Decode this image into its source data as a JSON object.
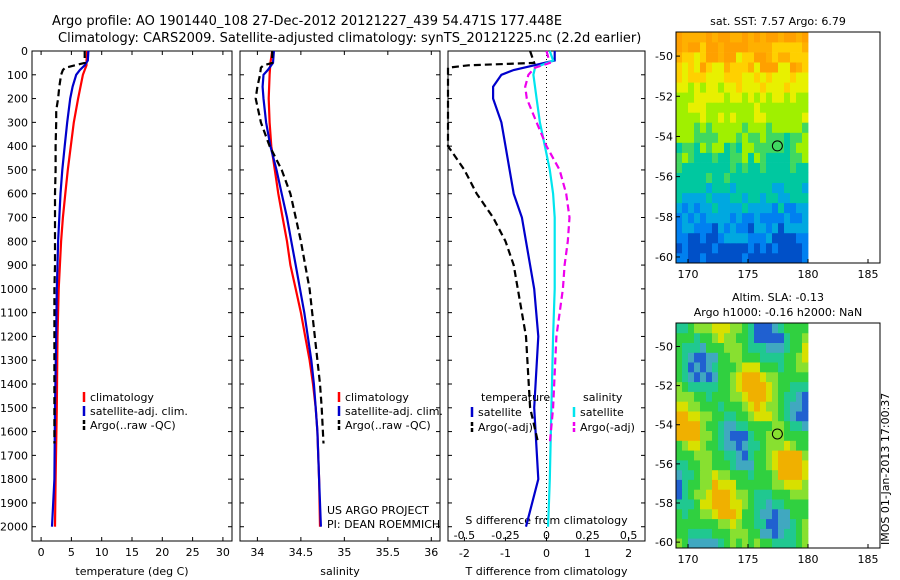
{
  "header": {
    "title_line1": "Argo profile: AO 1901440_108 27-Dec-2012 20121227_439 54.471S 177.448E",
    "title_line2": "Climatology: CARS2009. Satellite-adjusted climatology: synTS_20121225.nc (2.2d earlier)"
  },
  "colors": {
    "climatology": "#ff0000",
    "satellite": "#0000cc",
    "argo": "#000000",
    "satellite_salinity": "#00e5ee",
    "argo_salinity": "#ee00ee"
  },
  "depth_ticks": [
    "0",
    "100",
    "200",
    "300",
    "400",
    "500",
    "600",
    "700",
    "800",
    "900",
    "1000",
    "1100",
    "1200",
    "1300",
    "1400",
    "1500",
    "1600",
    "1700",
    "1800",
    "1900",
    "2000"
  ],
  "chart_data": [
    {
      "type": "line",
      "xlabel": "temperature (deg C)",
      "ylabel": "",
      "xlim": [
        -1.5,
        31.5
      ],
      "ylim": [
        0,
        2060
      ],
      "xticks": [
        "0",
        "5",
        "10",
        "15",
        "20",
        "25",
        "30"
      ],
      "legend": [
        "climatology",
        "satellite-adj. clim.",
        "Argo(..raw -QC)"
      ],
      "series": [
        {
          "name": "climatology",
          "color": "#ff0000",
          "style": "solid",
          "depth": [
            0,
            40,
            60,
            80,
            100,
            150,
            200,
            300,
            400,
            500,
            600,
            700,
            800,
            900,
            1000,
            1200,
            1500,
            1800,
            2000
          ],
          "values": [
            7.6,
            7.5,
            7.5,
            7.2,
            6.9,
            6.5,
            6.1,
            5.4,
            4.9,
            4.4,
            4.0,
            3.6,
            3.3,
            3.1,
            2.9,
            2.7,
            2.6,
            2.4,
            2.3
          ]
        },
        {
          "name": "satellite-adj. clim.",
          "color": "#0000cc",
          "style": "solid",
          "depth": [
            0,
            40,
            60,
            80,
            100,
            150,
            200,
            300,
            400,
            500,
            600,
            700,
            800,
            900,
            1000,
            1200,
            1500,
            1800,
            2000
          ],
          "values": [
            7.8,
            7.7,
            7.2,
            6.4,
            5.8,
            5.2,
            4.8,
            4.3,
            3.9,
            3.5,
            3.2,
            3.0,
            2.8,
            2.7,
            2.6,
            2.5,
            2.3,
            2.2,
            1.8
          ]
        },
        {
          "name": "Argo(..raw -QC)",
          "color": "#000000",
          "style": "dashed",
          "depth": [
            0,
            50,
            60,
            70,
            80,
            100,
            150,
            200,
            250,
            300,
            400,
            500,
            600,
            700,
            800,
            900,
            1000,
            1200,
            1500,
            1650
          ],
          "values": [
            7.2,
            7.2,
            5.6,
            4.0,
            3.6,
            3.3,
            3.0,
            2.8,
            2.5,
            2.5,
            2.4,
            2.4,
            2.3,
            2.3,
            2.3,
            2.3,
            2.2,
            2.2,
            2.2,
            2.2
          ]
        }
      ]
    },
    {
      "type": "line",
      "xlabel": "salinity",
      "ylabel": "",
      "xlim": [
        33.8,
        36.1
      ],
      "ylim": [
        0,
        2060
      ],
      "xticks": [
        "34",
        "34.5",
        "35",
        "35.5",
        "36"
      ],
      "legend": [
        "climatology",
        "satellite-adj. clim.",
        "Argo(..raw -QC)"
      ],
      "annotation": [
        "US ARGO PROJECT",
        "PI: DEAN ROEMMICH"
      ],
      "series": [
        {
          "name": "climatology",
          "color": "#ff0000",
          "style": "solid",
          "depth": [
            0,
            50,
            100,
            200,
            300,
            400,
            500,
            600,
            700,
            800,
            900,
            1000,
            1100,
            1200,
            1300,
            1400,
            1500,
            1600,
            1800,
            2000
          ],
          "values": [
            34.17,
            34.15,
            34.14,
            34.13,
            34.14,
            34.16,
            34.2,
            34.24,
            34.29,
            34.34,
            34.38,
            34.44,
            34.5,
            34.55,
            34.6,
            34.64,
            34.67,
            34.69,
            34.71,
            34.72
          ]
        },
        {
          "name": "satellite-adj. clim.",
          "color": "#0000cc",
          "style": "solid",
          "depth": [
            0,
            50,
            80,
            100,
            150,
            200,
            300,
            400,
            500,
            600,
            700,
            800,
            900,
            1000,
            1100,
            1200,
            1300,
            1400,
            1500,
            1600,
            1800,
            2000
          ],
          "values": [
            34.19,
            34.18,
            34.12,
            34.07,
            34.06,
            34.07,
            34.1,
            34.15,
            34.22,
            34.28,
            34.34,
            34.39,
            34.44,
            34.49,
            34.54,
            34.58,
            34.62,
            34.65,
            34.67,
            34.69,
            34.71,
            34.73
          ]
        },
        {
          "name": "Argo(..raw -QC)",
          "color": "#000000",
          "style": "dashed",
          "depth": [
            0,
            50,
            60,
            70,
            100,
            150,
            200,
            300,
            400,
            500,
            600,
            700,
            800,
            900,
            1000,
            1100,
            1200,
            1300,
            1400,
            1500,
            1650
          ],
          "values": [
            34.17,
            34.17,
            34.07,
            34.04,
            34.03,
            34.0,
            33.98,
            34.04,
            34.14,
            34.28,
            34.38,
            34.44,
            34.5,
            34.55,
            34.6,
            34.63,
            34.66,
            34.69,
            34.72,
            34.74,
            34.76
          ]
        }
      ]
    },
    {
      "type": "line",
      "xlabel": "T difference from climatology",
      "xlabel_top": "S difference from climatology",
      "xlim": [
        -2.4,
        2.4
      ],
      "ylim": [
        0,
        2060
      ],
      "xticks": [
        "-2",
        "-1",
        "0",
        "1",
        "2"
      ],
      "xticks_top": [
        "-0.5",
        "-0.25",
        "0",
        "0.25",
        "0.5"
      ],
      "legend_temperature": [
        "temperature",
        "satellite",
        "Argo(-adj)"
      ],
      "legend_salinity": [
        "salinity",
        "satellite",
        "Argo(-adj)"
      ],
      "series": [
        {
          "name": "satellite",
          "group": "temperature",
          "color": "#0000cc",
          "style": "solid",
          "depth": [
            0,
            40,
            60,
            80,
            100,
            150,
            200,
            300,
            400,
            500,
            600,
            700,
            800,
            900,
            1000,
            1200,
            1500,
            1800,
            2000
          ],
          "values": [
            0.2,
            0.2,
            -0.3,
            -0.8,
            -1.1,
            -1.3,
            -1.3,
            -1.1,
            -1.0,
            -0.9,
            -0.8,
            -0.6,
            -0.5,
            -0.4,
            -0.3,
            -0.2,
            -0.3,
            -0.2,
            -0.5
          ]
        },
        {
          "name": "Argo(-adj)",
          "group": "temperature",
          "color": "#000000",
          "style": "dashed",
          "depth": [
            0,
            50,
            60,
            70,
            80,
            100,
            150,
            200,
            300,
            400,
            500,
            600,
            700,
            800,
            900,
            1000,
            1200,
            1500,
            1650
          ],
          "values": [
            -0.4,
            -0.3,
            -1.9,
            -3.5,
            -3.6,
            -3.6,
            -3.5,
            -3.3,
            -2.9,
            -2.5,
            -2.0,
            -1.7,
            -1.3,
            -1.0,
            -0.8,
            -0.7,
            -0.5,
            -0.4,
            -0.2
          ]
        },
        {
          "name": "satellite",
          "group": "salinity",
          "color": "#00e5ee",
          "style": "solid",
          "depth": [
            0,
            40,
            70,
            100,
            200,
            300,
            400,
            500,
            600,
            700,
            800,
            900,
            1000,
            1200,
            1500,
            1800,
            2000
          ],
          "values": [
            0.02,
            0.04,
            -0.07,
            -0.08,
            -0.06,
            -0.04,
            -0.01,
            0.02,
            0.04,
            0.05,
            0.05,
            0.05,
            0.05,
            0.04,
            0.03,
            0.02,
            0.01
          ]
        },
        {
          "name": "Argo(-adj)",
          "group": "salinity",
          "color": "#ee00ee",
          "style": "dashed",
          "depth": [
            0,
            50,
            70,
            100,
            150,
            200,
            300,
            400,
            500,
            600,
            700,
            800,
            900,
            1000,
            1200,
            1500,
            1650
          ],
          "values": [
            0.0,
            0.02,
            -0.07,
            -0.11,
            -0.13,
            -0.12,
            -0.06,
            0.0,
            0.08,
            0.12,
            0.14,
            0.13,
            0.11,
            0.1,
            0.06,
            0.04,
            0.02
          ]
        }
      ]
    },
    {
      "type": "heatmap",
      "title": "sat. SST: 7.57 Argo: 6.79",
      "xlim": [
        169,
        186
      ],
      "ylim": [
        -60.3,
        -48.8
      ],
      "xticks": [
        "170",
        "175",
        "180",
        "185"
      ],
      "yticks": [
        "-50",
        "-52",
        "-54",
        "-56",
        "-58",
        "-60"
      ],
      "data_xlim": [
        169,
        180
      ],
      "marker": {
        "lon": 177.448,
        "lat": -54.471
      }
    },
    {
      "type": "heatmap",
      "title_line1": "Altim. SLA: -0.13",
      "title_line2": "Argo h1000: -0.16 h2000: NaN",
      "xlim": [
        169,
        186
      ],
      "ylim": [
        -60.3,
        -48.8
      ],
      "xticks": [
        "170",
        "175",
        "180",
        "185"
      ],
      "yticks": [
        "-50",
        "-52",
        "-54",
        "-56",
        "-58",
        "-60"
      ],
      "data_xlim": [
        169,
        180
      ],
      "marker": {
        "lon": 177.448,
        "lat": -54.471
      }
    }
  ],
  "side_label": "IMOS 01-Jan-2013 17:00:37"
}
